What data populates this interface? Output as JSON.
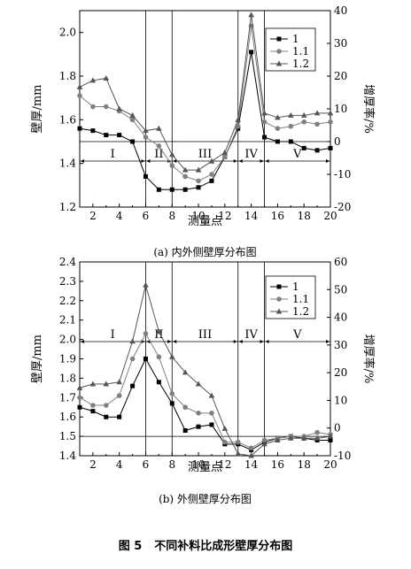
{
  "figure": {
    "number": "图 5",
    "title": "不同补料比成形壁厚分布图"
  },
  "chart_data": [
    {
      "type": "line",
      "caption": "(a) 内外侧壁厚分布图",
      "xlabel": "测量点",
      "ylabel": "壁厚/mm",
      "y2label": "增厚率/%",
      "xlim": [
        1,
        20
      ],
      "ylim": [
        1.2,
        2.1
      ],
      "y2lim": [
        -20,
        40
      ],
      "x_ticks": [
        2,
        4,
        6,
        8,
        10,
        12,
        14,
        16,
        18,
        20
      ],
      "y_ticks": [
        1.2,
        1.4,
        1.6,
        1.8,
        2.0
      ],
      "y2_ticks": [
        -20,
        -10,
        0,
        10,
        20,
        30,
        40
      ],
      "x": [
        1,
        2,
        3,
        4,
        5,
        6,
        7,
        8,
        9,
        10,
        11,
        12,
        13,
        14,
        15,
        16,
        17,
        18,
        19,
        20
      ],
      "series": [
        {
          "name": "1",
          "marker": "square",
          "values": [
            1.56,
            1.55,
            1.53,
            1.53,
            1.5,
            1.34,
            1.28,
            1.28,
            1.28,
            1.29,
            1.32,
            1.43,
            1.56,
            1.91,
            1.52,
            1.5,
            1.5,
            1.47,
            1.46,
            1.47
          ]
        },
        {
          "name": "1.1",
          "marker": "circle",
          "values": [
            1.71,
            1.66,
            1.66,
            1.64,
            1.6,
            1.52,
            1.48,
            1.39,
            1.34,
            1.32,
            1.35,
            1.43,
            1.57,
            2.03,
            1.59,
            1.56,
            1.57,
            1.59,
            1.58,
            1.59
          ]
        },
        {
          "name": "1.2",
          "marker": "triangle",
          "values": [
            1.75,
            1.78,
            1.79,
            1.65,
            1.62,
            1.55,
            1.56,
            1.44,
            1.37,
            1.37,
            1.41,
            1.45,
            1.6,
            2.08,
            1.63,
            1.61,
            1.62,
            1.62,
            1.63,
            1.63
          ]
        }
      ],
      "regions": [
        {
          "label": "I",
          "from": 1,
          "to": 6
        },
        {
          "label": "II",
          "from": 6,
          "to": 8
        },
        {
          "label": "III",
          "from": 8,
          "to": 13
        },
        {
          "label": "IV",
          "from": 13,
          "to": 15
        },
        {
          "label": "V",
          "from": 15,
          "to": 20
        }
      ],
      "reference_line": 1.5,
      "legend": "top-right"
    },
    {
      "type": "line",
      "caption": "(b) 外侧壁厚分布图",
      "xlabel": "测量点",
      "ylabel": "壁厚/mm",
      "y2label": "增厚率/%",
      "xlim": [
        1,
        20
      ],
      "ylim": [
        1.4,
        2.4
      ],
      "y2lim": [
        -10,
        60
      ],
      "x_ticks": [
        2,
        4,
        6,
        8,
        10,
        12,
        14,
        16,
        18,
        20
      ],
      "y_ticks": [
        1.4,
        1.5,
        1.6,
        1.7,
        1.8,
        1.9,
        2.0,
        2.1,
        2.2,
        2.3,
        2.4
      ],
      "y2_ticks": [
        -10,
        0,
        10,
        20,
        30,
        40,
        50,
        60
      ],
      "x": [
        1,
        2,
        3,
        4,
        5,
        6,
        7,
        8,
        9,
        10,
        11,
        12,
        13,
        14,
        15,
        16,
        17,
        18,
        19,
        20
      ],
      "series": [
        {
          "name": "1",
          "marker": "square",
          "values": [
            1.65,
            1.63,
            1.6,
            1.6,
            1.76,
            1.9,
            1.78,
            1.67,
            1.53,
            1.55,
            1.56,
            1.46,
            1.46,
            1.43,
            1.47,
            1.49,
            1.5,
            1.49,
            1.48,
            1.48
          ]
        },
        {
          "name": "1.1",
          "marker": "circle",
          "values": [
            1.7,
            1.66,
            1.66,
            1.71,
            1.9,
            2.03,
            1.91,
            1.72,
            1.65,
            1.62,
            1.62,
            1.47,
            1.47,
            1.44,
            1.48,
            1.49,
            1.5,
            1.5,
            1.52,
            1.51
          ]
        },
        {
          "name": "1.2",
          "marker": "triangle",
          "values": [
            1.75,
            1.77,
            1.77,
            1.78,
            1.99,
            2.28,
            2.04,
            1.91,
            1.83,
            1.77,
            1.71,
            1.54,
            1.41,
            1.4,
            1.46,
            1.48,
            1.49,
            1.49,
            1.49,
            1.5
          ]
        }
      ],
      "regions": [
        {
          "label": "I",
          "from": 1,
          "to": 6
        },
        {
          "label": "II",
          "from": 6,
          "to": 8
        },
        {
          "label": "III",
          "from": 8,
          "to": 13
        },
        {
          "label": "IV",
          "from": 13,
          "to": 15
        },
        {
          "label": "V",
          "from": 15,
          "to": 20
        }
      ],
      "reference_line": 1.5,
      "legend": "top-right"
    }
  ]
}
